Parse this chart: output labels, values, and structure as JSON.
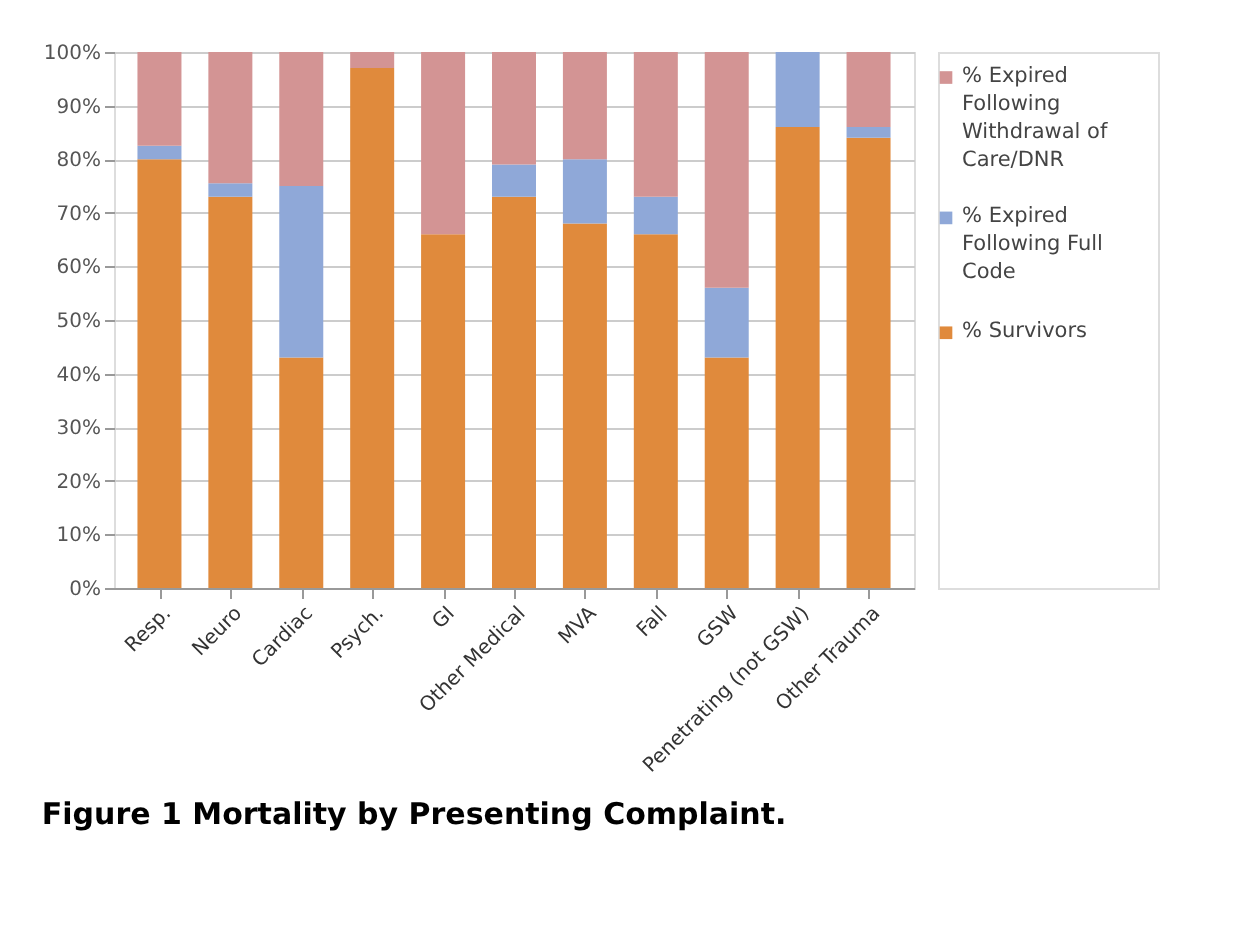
{
  "chart_data": {
    "type": "bar",
    "title": "Figure 1 Mortality by Presenting Complaint.",
    "stacked": true,
    "categories": [
      "Resp.",
      "Neuro",
      "Cardiac",
      "Psych.",
      "GI",
      "Other Medical",
      "MVA",
      "Fall",
      "GSW",
      "Penetrating (not GSW)",
      "Other Trauma"
    ],
    "series": [
      {
        "name": "% Survivors",
        "color": "#e08a3c",
        "values": [
          80,
          73,
          43,
          97,
          66,
          73,
          68,
          66,
          43,
          86,
          84
        ]
      },
      {
        "name": "% Expired Following Full Code",
        "color": "#8fa8d8",
        "values": [
          2.5,
          2.5,
          32,
          0,
          0,
          6,
          12,
          7,
          13,
          14,
          2
        ]
      },
      {
        "name": "% Expired Following Withdrawal of Care/DNR",
        "color": "#d39494",
        "values": [
          17.5,
          24.5,
          25,
          3,
          34,
          21,
          20,
          27,
          44,
          0,
          14
        ]
      }
    ],
    "ylim": [
      0,
      100
    ],
    "yticks": [
      {
        "value": 0,
        "label": "0%"
      },
      {
        "value": 10,
        "label": "10%"
      },
      {
        "value": 20,
        "label": "20%"
      },
      {
        "value": 30,
        "label": "30%"
      },
      {
        "value": 40,
        "label": "40%"
      },
      {
        "value": 50,
        "label": "50%"
      },
      {
        "value": 60,
        "label": "60%"
      },
      {
        "value": 70,
        "label": "70%"
      },
      {
        "value": 80,
        "label": "80%"
      },
      {
        "value": 90,
        "label": "90%"
      },
      {
        "value": 100,
        "label": "100%"
      }
    ],
    "grid": "y",
    "legend": "right"
  }
}
